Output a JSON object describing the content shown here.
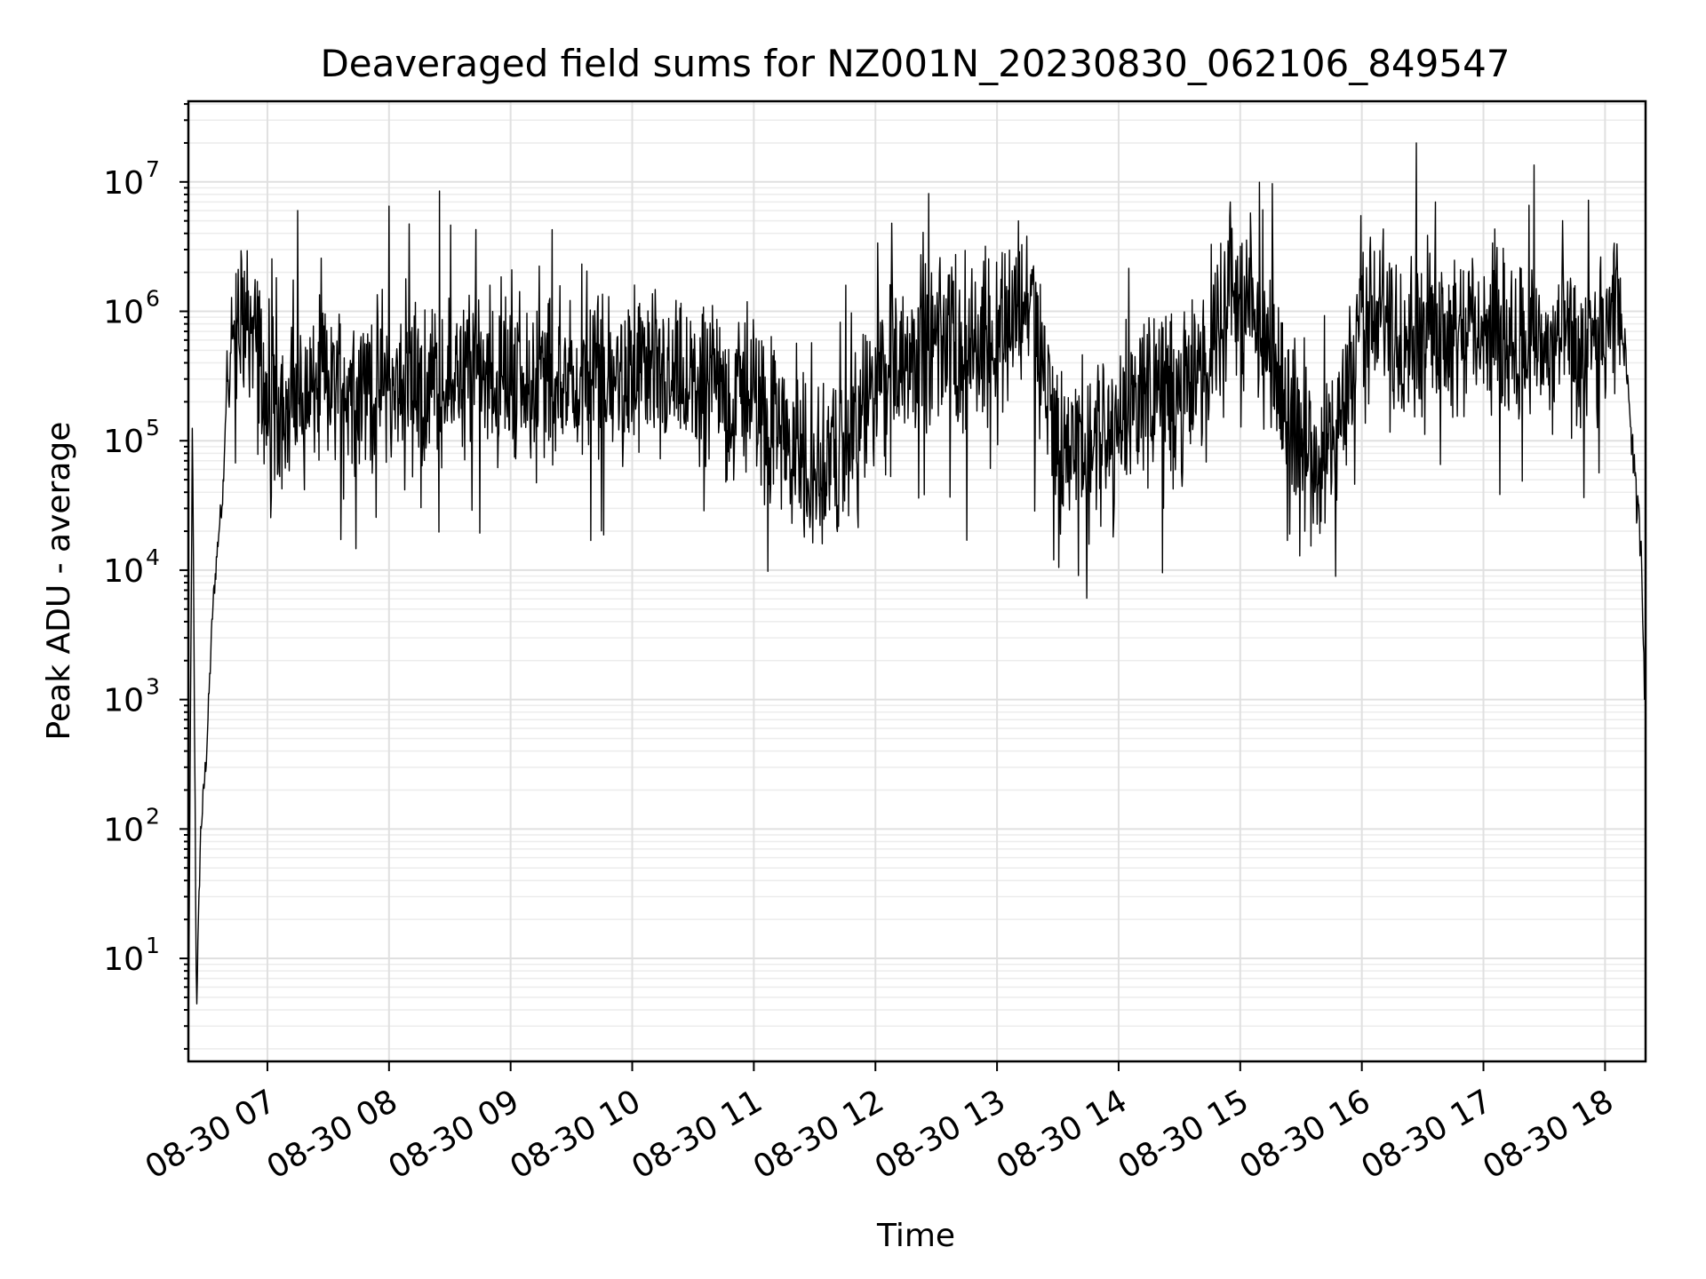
{
  "chart_data": {
    "type": "line",
    "title": "Deaveraged field sums for NZ001N_20230830_062106_849547",
    "xlabel": "Time",
    "ylabel": "Peak ADU - average",
    "yscale": "log",
    "ylim": [
      1.6,
      42000000
    ],
    "xlim": [
      "2023-08-30 06:21",
      "2023-08-30 18:20"
    ],
    "grid": true,
    "xticks": [
      "08-30 07",
      "08-30 08",
      "08-30 09",
      "08-30 10",
      "08-30 11",
      "08-30 12",
      "08-30 13",
      "08-30 14",
      "08-30 15",
      "08-30 16",
      "08-30 17",
      "08-30 18"
    ],
    "yticks": [
      {
        "base": "10",
        "exp": "1",
        "value": 10
      },
      {
        "base": "10",
        "exp": "2",
        "value": 100
      },
      {
        "base": "10",
        "exp": "3",
        "value": 1000
      },
      {
        "base": "10",
        "exp": "4",
        "value": 10000
      },
      {
        "base": "10",
        "exp": "5",
        "value": 100000
      },
      {
        "base": "10",
        "exp": "6",
        "value": 1000000
      },
      {
        "base": "10",
        "exp": "7",
        "value": 10000000
      }
    ],
    "line_color": "#000000",
    "series": [
      {
        "x": [
          "2023-08-30 06:21",
          "2023-08-30 06:23",
          "2023-08-30 06:25",
          "2023-08-30 06:27",
          "2023-08-30 06:30",
          "2023-08-30 06:33",
          "2023-08-30 06:36",
          "2023-08-30 06:38",
          "2023-08-30 06:40",
          "2023-08-30 06:45",
          "2023-08-30 06:50",
          "2023-08-30 06:55",
          "2023-08-30 07:00",
          "2023-08-30 07:15",
          "2023-08-30 07:30",
          "2023-08-30 07:45",
          "2023-08-30 08:00",
          "2023-08-30 08:25",
          "2023-08-30 08:45",
          "2023-08-30 09:00",
          "2023-08-30 09:30",
          "2023-08-30 10:00",
          "2023-08-30 10:30",
          "2023-08-30 11:00",
          "2023-08-30 11:15",
          "2023-08-30 11:30",
          "2023-08-30 11:45",
          "2023-08-30 12:00",
          "2023-08-30 12:15",
          "2023-08-30 12:30",
          "2023-08-30 12:45",
          "2023-08-30 13:00",
          "2023-08-30 13:15",
          "2023-08-30 13:30",
          "2023-08-30 13:45",
          "2023-08-30 14:00",
          "2023-08-30 14:15",
          "2023-08-30 14:30",
          "2023-08-30 14:45",
          "2023-08-30 14:55",
          "2023-08-30 15:05",
          "2023-08-30 15:20",
          "2023-08-30 15:35",
          "2023-08-30 15:45",
          "2023-08-30 16:00",
          "2023-08-30 16:15",
          "2023-08-30 16:30",
          "2023-08-30 16:45",
          "2023-08-30 17:00",
          "2023-08-30 17:20",
          "2023-08-30 17:40",
          "2023-08-30 18:00",
          "2023-08-30 18:08",
          "2023-08-30 18:12",
          "2023-08-30 18:15",
          "2023-08-30 18:18",
          "2023-08-30 18:20"
        ],
        "values": [
          2,
          150000,
          4,
          90,
          400,
          5000,
          20000,
          40000,
          300000,
          600000,
          1200000,
          500000,
          180000,
          220000,
          300000,
          250000,
          280000,
          300000,
          350000,
          330000,
          320000,
          300000,
          250000,
          220000,
          120000,
          60000,
          90000,
          250000,
          500000,
          600000,
          450000,
          800000,
          1200000,
          100000,
          80000,
          150000,
          300000,
          200000,
          500000,
          1500000,
          1000000,
          250000,
          100000,
          80000,
          900000,
          700000,
          900000,
          800000,
          700000,
          600000,
          500000,
          600000,
          1000000,
          200000,
          40000,
          15000,
          600
        ]
      }
    ],
    "peaks": [
      {
        "x": "2023-08-30 07:15",
        "y": 6000000
      },
      {
        "x": "2023-08-30 08:00",
        "y": 6500000
      },
      {
        "x": "2023-08-30 08:25",
        "y": 8500000
      },
      {
        "x": "2023-08-30 12:08",
        "y": 4800000
      },
      {
        "x": "2023-08-30 14:55",
        "y": 7000000
      },
      {
        "x": "2023-08-30 16:27",
        "y": 20000000
      },
      {
        "x": "2023-08-30 17:25",
        "y": 13500000
      }
    ],
    "dips": [
      {
        "x": "2023-08-30 11:25",
        "y": 18000
      },
      {
        "x": "2023-08-30 12:45",
        "y": 17000
      },
      {
        "x": "2023-08-30 13:28",
        "y": 12000
      },
      {
        "x": "2023-08-30 15:32",
        "y": 20000
      }
    ]
  }
}
